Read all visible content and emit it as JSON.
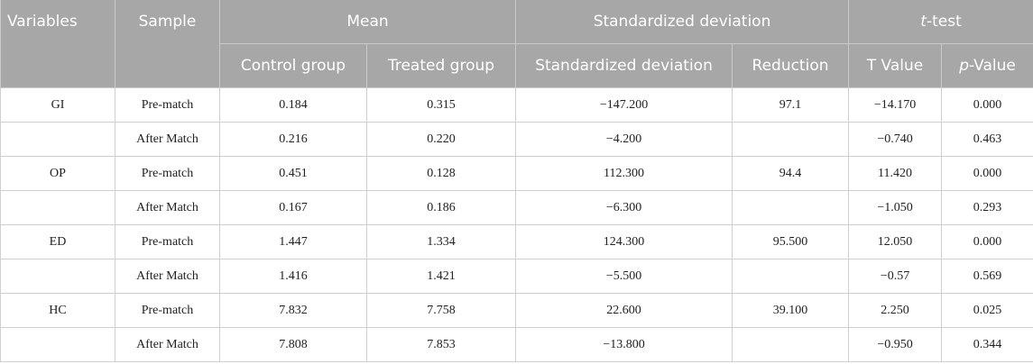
{
  "headers": {
    "variables": "Variables",
    "sample": "Sample",
    "mean": "Mean",
    "std_dev_group": "Standardized deviation",
    "ttest_italic": "t",
    "ttest_rest": "-test",
    "control_group": "Control group",
    "treated_group": "Treated group",
    "std_dev": "Standardized deviation",
    "reduction": "Reduction",
    "t_value": "T Value",
    "pvalue_italic": "p",
    "pvalue_rest": "-Value"
  },
  "rows": [
    {
      "variable": "GI",
      "sample": "Pre-match",
      "control": "0.184",
      "treated": "0.315",
      "std_dev": "−147.200",
      "reduction": "97.1",
      "t_value": "−14.170",
      "p_value": "0.000"
    },
    {
      "variable": "",
      "sample": "After Match",
      "control": "0.216",
      "treated": "0.220",
      "std_dev": "−4.200",
      "reduction": "",
      "t_value": "−0.740",
      "p_value": "0.463"
    },
    {
      "variable": "OP",
      "sample": "Pre-match",
      "control": "0.451",
      "treated": "0.128",
      "std_dev": "112.300",
      "reduction": "94.4",
      "t_value": "11.420",
      "p_value": "0.000"
    },
    {
      "variable": "",
      "sample": "After Match",
      "control": "0.167",
      "treated": "0.186",
      "std_dev": "−6.300",
      "reduction": "",
      "t_value": "−1.050",
      "p_value": "0.293"
    },
    {
      "variable": "ED",
      "sample": "Pre-match",
      "control": "1.447",
      "treated": "1.334",
      "std_dev": "124.300",
      "reduction": "95.500",
      "t_value": "12.050",
      "p_value": "0.000"
    },
    {
      "variable": "",
      "sample": "After Match",
      "control": "1.416",
      "treated": "1.421",
      "std_dev": "−5.500",
      "reduction": "",
      "t_value": "−0.57",
      "p_value": "0.569"
    },
    {
      "variable": "HC",
      "sample": "Pre-match",
      "control": "7.832",
      "treated": "7.758",
      "std_dev": "22.600",
      "reduction": "39.100",
      "t_value": "2.250",
      "p_value": "0.025"
    },
    {
      "variable": "",
      "sample": "After Match",
      "control": "7.808",
      "treated": "7.853",
      "std_dev": "−13.800",
      "reduction": "",
      "t_value": "−0.950",
      "p_value": "0.344"
    }
  ]
}
